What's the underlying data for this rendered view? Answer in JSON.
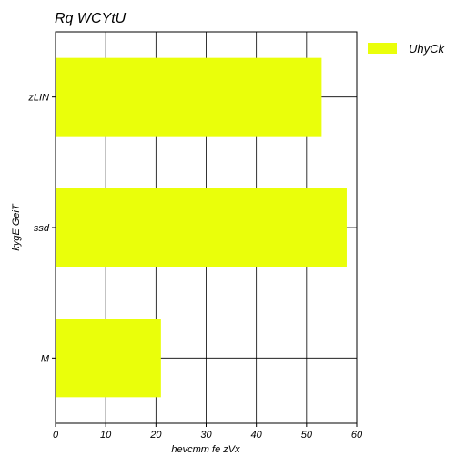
{
  "chart_data": {
    "type": "bar",
    "orientation": "horizontal",
    "title": "Rq WCYtU",
    "xlabel": "hevcmm  fe zVx",
    "ylabel": "kygE GeiT",
    "categories": [
      "M",
      "ssd",
      "zLIN"
    ],
    "series": [
      {
        "name": "UhyCk",
        "values": [
          21,
          58,
          53
        ],
        "color": "#eaff0a"
      }
    ],
    "xlim": [
      0,
      60
    ],
    "xticks": [
      0,
      10,
      20,
      30,
      40,
      50,
      60
    ],
    "grid": true,
    "legend_position": "outside-top-right"
  }
}
